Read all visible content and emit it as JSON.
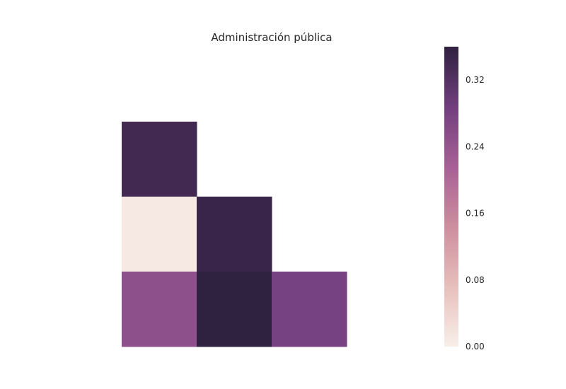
{
  "chart_data": {
    "type": "heatmap",
    "title": "Administración pública",
    "xlabel": "",
    "ylabel": "",
    "mask": "upper-triangle",
    "rows": 3,
    "cols": 3,
    "matrix": [
      [
        0.34,
        null,
        null
      ],
      [
        0.01,
        0.35,
        null
      ],
      [
        0.25,
        0.36,
        0.28
      ]
    ],
    "colorbar": {
      "vmin": 0.0,
      "vmax": 0.36,
      "ticks": [
        0.0,
        0.08,
        0.16,
        0.24,
        0.32
      ],
      "tick_labels": [
        "0.00",
        "0.08",
        "0.16",
        "0.24",
        "0.32"
      ],
      "colors": [
        "#f8efe9",
        "#e7bfbc",
        "#cd8e9e",
        "#a76095",
        "#713e7e",
        "#2f2140"
      ]
    },
    "grid": false
  }
}
